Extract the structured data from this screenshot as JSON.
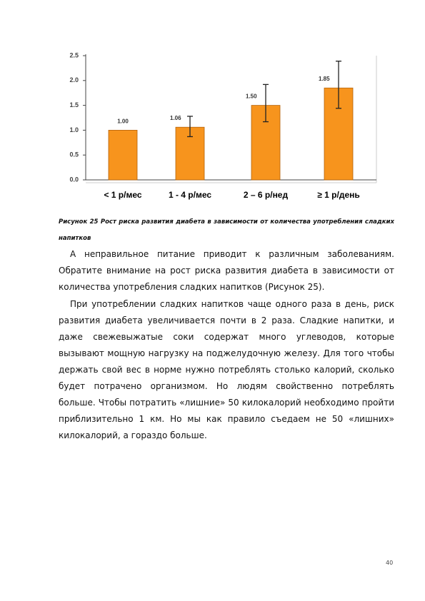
{
  "chart_data": {
    "type": "bar",
    "categories": [
      "< 1 р/мес",
      "1 - 4 р/мес",
      "2 – 6 р/нед",
      "≥ 1 р/день"
    ],
    "values": [
      1.0,
      1.06,
      1.5,
      1.85
    ],
    "value_labels": [
      "1.00",
      "1.06",
      "1.50",
      "1.85"
    ],
    "ci_low": [
      null,
      0.87,
      1.17,
      1.44
    ],
    "ci_high": [
      null,
      1.28,
      1.92,
      2.39
    ],
    "color": "#f7941d",
    "ylim": [
      0,
      2.5
    ],
    "yticks": [
      {
        "value": 0,
        "label": "0.0"
      },
      {
        "value": 0.5,
        "label": "0.5"
      },
      {
        "value": 1,
        "label": "1.0"
      },
      {
        "value": 1.5,
        "label": "1.5"
      },
      {
        "value": 2,
        "label": "2.0"
      },
      {
        "value": 2.5,
        "label": "2.5"
      }
    ],
    "grid": false
  },
  "caption": "Рисунок 25 Рост риска развития диабета в зависимости от количества употребления сладких напитков",
  "paragraphs": [
    "А неправильное питание приводит к различным заболеваниям. Обратите внимание на рост риска развития диабета в зависимости от количества употребления сладких напитков (Рисунок 25).",
    "При употреблении сладких напитков чаще одного раза в день, риск развития диабета увеличивается почти в 2 раза. Сладкие напитки, и даже свежевыжатые соки содержат много углеводов, которые вызывают мощную нагрузку на поджелудочную железу. Для того чтобы держать свой вес в норме нужно потреблять столько калорий, сколько будет потрачено организмом. Но людям свойственно потреблять больше. Чтобы потратить «лишние» 50 килокалорий необходимо пройти приблизительно 1 км. Но мы как правило съедаем не 50 «лишних» килокалорий, а гораздо больше."
  ],
  "page_number": "40"
}
